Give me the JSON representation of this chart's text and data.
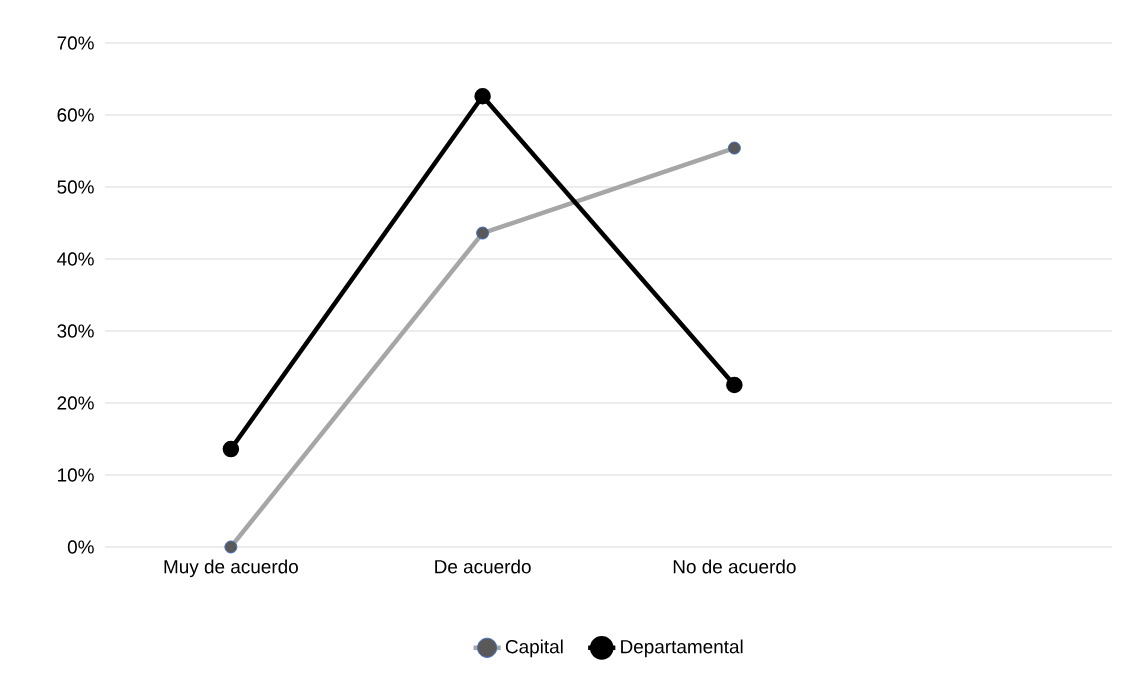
{
  "chart_data": {
    "type": "line",
    "categories": [
      "Muy de acuerdo",
      "De acuerdo",
      "No de acuerdo",
      null
    ],
    "series": [
      {
        "name": "Capital",
        "color": "#a6a6a6",
        "values": [
          0,
          43.6,
          55.4,
          null
        ]
      },
      {
        "name": "Departamental",
        "color": "#000000",
        "values": [
          13.6,
          62.6,
          22.5,
          null
        ]
      }
    ],
    "ylim": [
      0,
      70
    ],
    "yticks": [
      {
        "value": 0,
        "label": "0%"
      },
      {
        "value": 10,
        "label": "10%"
      },
      {
        "value": 20,
        "label": "20%"
      },
      {
        "value": 30,
        "label": "30%"
      },
      {
        "value": 40,
        "label": "40%"
      },
      {
        "value": 50,
        "label": "50%"
      },
      {
        "value": 60,
        "label": "60%"
      },
      {
        "value": 70,
        "label": "70%"
      }
    ],
    "grid": "y",
    "legend": "bottom",
    "marker": "circle",
    "line_style": "solid"
  }
}
